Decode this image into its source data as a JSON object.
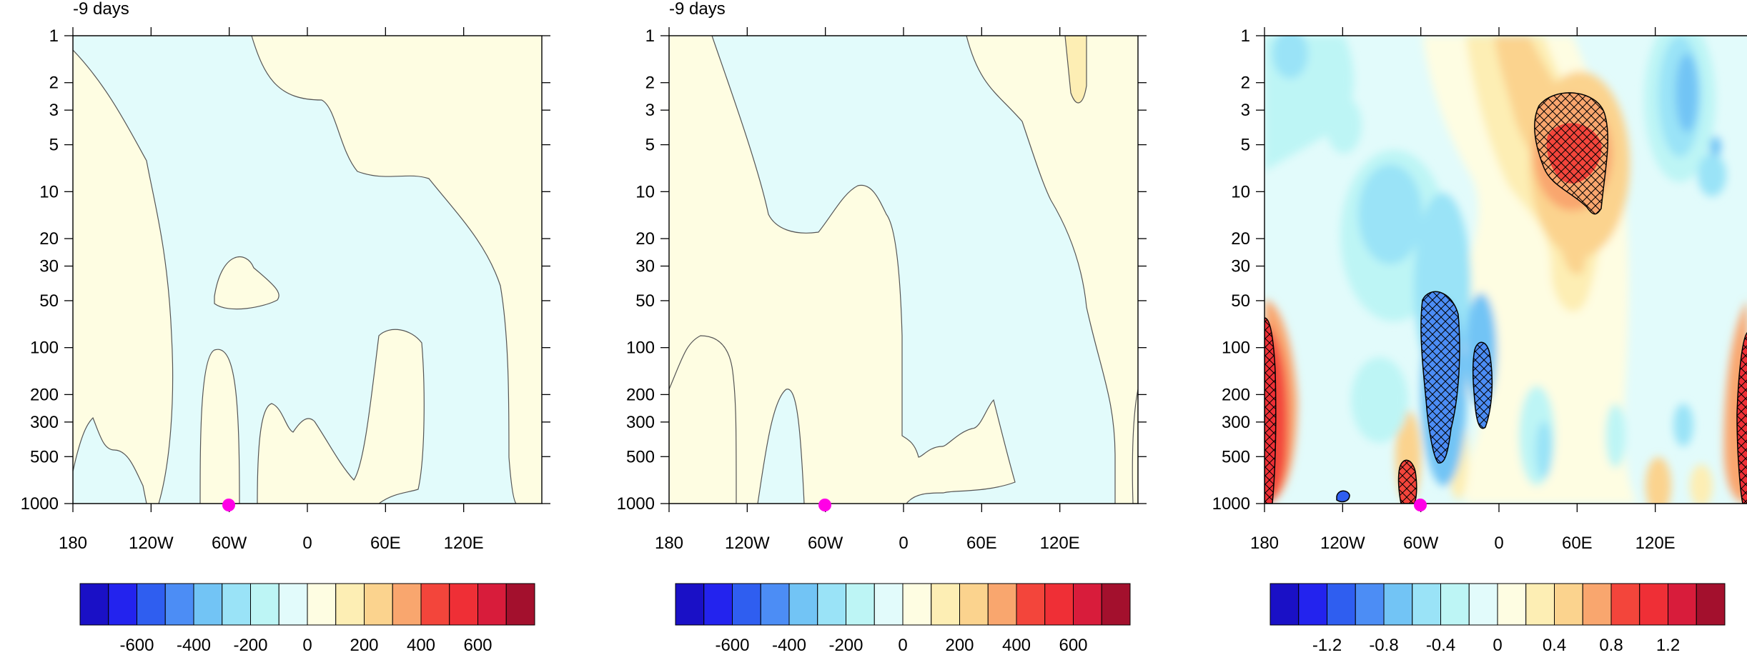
{
  "figure": {
    "panels": [
      {
        "title": "-9 days"
      },
      {
        "title": "-9 days"
      },
      {
        "title": ""
      }
    ]
  },
  "colors": {
    "colorbar": [
      "#1a10c6",
      "#2323ee",
      "#2f5ef0",
      "#4c8df5",
      "#72c4f5",
      "#9ae3f7",
      "#bdf5f5",
      "#e2fbfb",
      "#fefde2",
      "#fdeeb4",
      "#fbd38e",
      "#f9a66e",
      "#f3453b",
      "#ef2f36",
      "#d81c3b",
      "#a3102d"
    ],
    "negative_fill": "#e2fbfb",
    "positive_fill": "#fefde2",
    "marker": "#ff00e6",
    "contour": "#555555"
  },
  "chart_data": [
    {
      "type": "heatmap",
      "title": "-9 days",
      "x_ticks": [
        "180",
        "120W",
        "60W",
        "0",
        "60E",
        "120E"
      ],
      "y_ticks": [
        "1",
        "2",
        "3",
        "5",
        "10",
        "20",
        "30",
        "50",
        "100",
        "200",
        "300",
        "500",
        "1000"
      ],
      "y_scale": "log",
      "y_reversed": true,
      "marker": {
        "x": "60W",
        "y": 1000
      },
      "colorbar": {
        "labels": [
          "-600",
          "-400",
          "-200",
          "0",
          "200",
          "400",
          "600"
        ]
      },
      "filled_regions": [
        "negative (light cyan, 0 to -200) over most of the domain",
        "positive (light yellow, 0 to 200) elsewhere"
      ]
    },
    {
      "type": "heatmap",
      "title": "-9 days",
      "x_ticks": [
        "180",
        "120W",
        "60W",
        "0",
        "60E",
        "120E"
      ],
      "y_ticks": [
        "1",
        "2",
        "3",
        "5",
        "10",
        "20",
        "30",
        "50",
        "100",
        "200",
        "300",
        "500",
        "1000"
      ],
      "y_scale": "log",
      "y_reversed": true,
      "marker": {
        "x": "60W",
        "y": 1000
      },
      "colorbar": {
        "labels": [
          "-600",
          "-400",
          "-200",
          "0",
          "200",
          "400",
          "600"
        ]
      }
    },
    {
      "type": "heatmap",
      "title": "",
      "x_ticks": [
        "180",
        "120W",
        "60W",
        "0",
        "60E",
        "120E"
      ],
      "y_ticks": [
        "1",
        "2",
        "3",
        "5",
        "10",
        "20",
        "30",
        "50",
        "100",
        "200",
        "300",
        "500",
        "1000"
      ],
      "y_scale": "log",
      "y_reversed": true,
      "marker": {
        "x": "60W",
        "y": 1000
      },
      "colorbar": {
        "labels": [
          "-1.2",
          "-0.8",
          "-0.4",
          "0",
          "0.4",
          "0.8",
          "1.2"
        ]
      },
      "hatched_significant_regions": [
        {
          "x": "60E",
          "y_range": [
            3,
            15
          ],
          "sign": "positive"
        },
        {
          "x": "45W",
          "y_range": [
            50,
            600
          ],
          "sign": "negative"
        },
        {
          "x": "15W",
          "y_range": [
            90,
            350
          ],
          "sign": "negative"
        },
        {
          "x": "65W",
          "y_range": [
            600,
            1000
          ],
          "sign": "positive"
        },
        {
          "x": "120W",
          "y_range": [
            900,
            1000
          ],
          "sign": "negative"
        },
        {
          "x": "180",
          "y_range": [
            70,
            1000
          ],
          "sign": "positive"
        },
        {
          "x": "170E",
          "y_range": [
            80,
            1000
          ],
          "sign": "positive"
        }
      ]
    }
  ]
}
